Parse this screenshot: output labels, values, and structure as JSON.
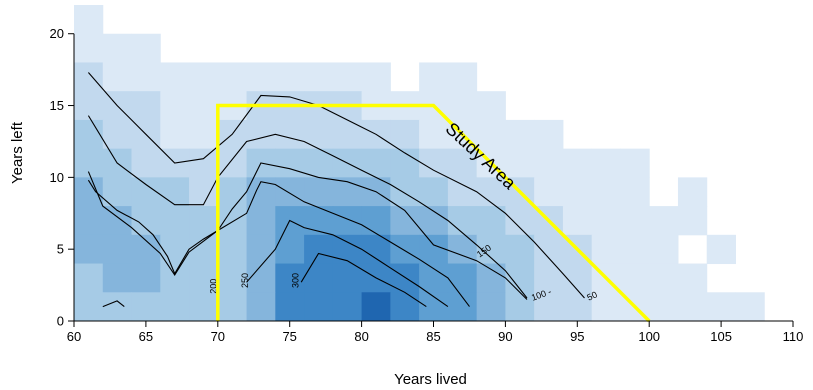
{
  "chart_data": {
    "type": "heatmap",
    "title": "",
    "xlabel": "Years lived",
    "ylabel": "Years left",
    "xlim": [
      60,
      110
    ],
    "ylim": [
      0,
      22
    ],
    "xticks": [
      60,
      65,
      70,
      75,
      80,
      85,
      90,
      95,
      100,
      105,
      110
    ],
    "yticks": [
      0,
      5,
      10,
      15,
      20
    ],
    "grid": false,
    "legend": "none",
    "cell_width": 2,
    "cell_height": 2,
    "color_scale": [
      "#ffffff",
      "#dce9f6",
      "#c2d9ee",
      "#a6cbe6",
      "#85b5dc",
      "#5e9fd2",
      "#3d86c6",
      "#1f66b0"
    ],
    "cells": [
      [
        60,
        20,
        1
      ],
      [
        60,
        18,
        1
      ],
      [
        62,
        18,
        1
      ],
      [
        64,
        18,
        1
      ],
      [
        60,
        16,
        2
      ],
      [
        62,
        16,
        1
      ],
      [
        64,
        16,
        1
      ],
      [
        66,
        16,
        1
      ],
      [
        68,
        16,
        1
      ],
      [
        70,
        16,
        1
      ],
      [
        72,
        16,
        1
      ],
      [
        74,
        16,
        1
      ],
      [
        76,
        16,
        1
      ],
      [
        78,
        16,
        1
      ],
      [
        80,
        16,
        1
      ],
      [
        84,
        16,
        1
      ],
      [
        86,
        16,
        1
      ],
      [
        60,
        14,
        2
      ],
      [
        62,
        14,
        2
      ],
      [
        64,
        14,
        2
      ],
      [
        66,
        14,
        1
      ],
      [
        68,
        14,
        1
      ],
      [
        70,
        14,
        1
      ],
      [
        72,
        14,
        2
      ],
      [
        74,
        14,
        2
      ],
      [
        76,
        14,
        2
      ],
      [
        78,
        14,
        2
      ],
      [
        80,
        14,
        1
      ],
      [
        82,
        14,
        1
      ],
      [
        84,
        14,
        1
      ],
      [
        86,
        14,
        1
      ],
      [
        88,
        14,
        1
      ],
      [
        60,
        12,
        3
      ],
      [
        62,
        12,
        2
      ],
      [
        64,
        12,
        2
      ],
      [
        66,
        12,
        1
      ],
      [
        68,
        12,
        1
      ],
      [
        70,
        12,
        2
      ],
      [
        72,
        12,
        2
      ],
      [
        74,
        12,
        2
      ],
      [
        76,
        12,
        2
      ],
      [
        78,
        12,
        2
      ],
      [
        80,
        12,
        2
      ],
      [
        82,
        12,
        2
      ],
      [
        84,
        12,
        1
      ],
      [
        86,
        12,
        1
      ],
      [
        88,
        12,
        1
      ],
      [
        90,
        12,
        1
      ],
      [
        92,
        12,
        1
      ],
      [
        60,
        10,
        3
      ],
      [
        62,
        10,
        3
      ],
      [
        64,
        10,
        2
      ],
      [
        66,
        10,
        2
      ],
      [
        68,
        10,
        2
      ],
      [
        70,
        10,
        2
      ],
      [
        72,
        10,
        3
      ],
      [
        74,
        10,
        3
      ],
      [
        76,
        10,
        3
      ],
      [
        78,
        10,
        3
      ],
      [
        80,
        10,
        3
      ],
      [
        82,
        10,
        3
      ],
      [
        84,
        10,
        2
      ],
      [
        86,
        10,
        2
      ],
      [
        88,
        10,
        1
      ],
      [
        90,
        10,
        1
      ],
      [
        92,
        10,
        1
      ],
      [
        94,
        10,
        1
      ],
      [
        96,
        10,
        1
      ],
      [
        98,
        10,
        1
      ],
      [
        60,
        8,
        4
      ],
      [
        62,
        8,
        3
      ],
      [
        64,
        8,
        3
      ],
      [
        66,
        8,
        3
      ],
      [
        68,
        8,
        2
      ],
      [
        70,
        8,
        3
      ],
      [
        72,
        8,
        4
      ],
      [
        74,
        8,
        4
      ],
      [
        76,
        8,
        4
      ],
      [
        78,
        8,
        4
      ],
      [
        80,
        8,
        4
      ],
      [
        82,
        8,
        3
      ],
      [
        84,
        8,
        3
      ],
      [
        86,
        8,
        2
      ],
      [
        88,
        8,
        2
      ],
      [
        90,
        8,
        2
      ],
      [
        92,
        8,
        1
      ],
      [
        94,
        8,
        1
      ],
      [
        96,
        8,
        1
      ],
      [
        98,
        8,
        1
      ],
      [
        102,
        8,
        1
      ],
      [
        60,
        6,
        4
      ],
      [
        62,
        6,
        4
      ],
      [
        64,
        6,
        3
      ],
      [
        66,
        6,
        3
      ],
      [
        68,
        6,
        3
      ],
      [
        70,
        6,
        3
      ],
      [
        72,
        6,
        4
      ],
      [
        74,
        6,
        5
      ],
      [
        76,
        6,
        5
      ],
      [
        78,
        6,
        5
      ],
      [
        80,
        6,
        5
      ],
      [
        82,
        6,
        4
      ],
      [
        84,
        6,
        4
      ],
      [
        86,
        6,
        3
      ],
      [
        88,
        6,
        3
      ],
      [
        90,
        6,
        2
      ],
      [
        92,
        6,
        2
      ],
      [
        94,
        6,
        1
      ],
      [
        96,
        6,
        1
      ],
      [
        98,
        6,
        1
      ],
      [
        100,
        6,
        1
      ],
      [
        102,
        6,
        1
      ],
      [
        60,
        4,
        4
      ],
      [
        62,
        4,
        4
      ],
      [
        64,
        4,
        4
      ],
      [
        66,
        4,
        3
      ],
      [
        68,
        4,
        3
      ],
      [
        70,
        4,
        3
      ],
      [
        72,
        4,
        4
      ],
      [
        74,
        4,
        5
      ],
      [
        76,
        4,
        6
      ],
      [
        78,
        4,
        6
      ],
      [
        80,
        4,
        6
      ],
      [
        82,
        4,
        5
      ],
      [
        84,
        4,
        5
      ],
      [
        86,
        4,
        4
      ],
      [
        88,
        4,
        3
      ],
      [
        90,
        4,
        3
      ],
      [
        92,
        4,
        2
      ],
      [
        94,
        4,
        2
      ],
      [
        96,
        4,
        1
      ],
      [
        98,
        4,
        1
      ],
      [
        100,
        4,
        1
      ],
      [
        104,
        4,
        1
      ],
      [
        60,
        2,
        3
      ],
      [
        62,
        2,
        4
      ],
      [
        64,
        2,
        4
      ],
      [
        66,
        2,
        3
      ],
      [
        68,
        2,
        3
      ],
      [
        70,
        2,
        3
      ],
      [
        72,
        2,
        4
      ],
      [
        74,
        2,
        6
      ],
      [
        76,
        2,
        6
      ],
      [
        78,
        2,
        6
      ],
      [
        80,
        2,
        6
      ],
      [
        82,
        2,
        6
      ],
      [
        84,
        2,
        5
      ],
      [
        86,
        2,
        5
      ],
      [
        88,
        2,
        4
      ],
      [
        90,
        2,
        3
      ],
      [
        92,
        2,
        2
      ],
      [
        94,
        2,
        2
      ],
      [
        96,
        2,
        1
      ],
      [
        98,
        2,
        1
      ],
      [
        100,
        2,
        1
      ],
      [
        102,
        2,
        1
      ],
      [
        60,
        0,
        3
      ],
      [
        62,
        0,
        3
      ],
      [
        64,
        0,
        3
      ],
      [
        66,
        0,
        3
      ],
      [
        68,
        0,
        3
      ],
      [
        70,
        0,
        3
      ],
      [
        72,
        0,
        4
      ],
      [
        74,
        0,
        6
      ],
      [
        76,
        0,
        6
      ],
      [
        78,
        0,
        6
      ],
      [
        80,
        0,
        7
      ],
      [
        82,
        0,
        6
      ],
      [
        84,
        0,
        5
      ],
      [
        86,
        0,
        5
      ],
      [
        88,
        0,
        4
      ],
      [
        90,
        0,
        3
      ],
      [
        92,
        0,
        2
      ],
      [
        94,
        0,
        2
      ],
      [
        96,
        0,
        1
      ],
      [
        98,
        0,
        1
      ],
      [
        100,
        0,
        1
      ],
      [
        102,
        0,
        1
      ],
      [
        104,
        0,
        1
      ],
      [
        106,
        0,
        1
      ]
    ],
    "contours": [
      {
        "label": "50",
        "points": [
          [
            61,
            17.3
          ],
          [
            63,
            15
          ],
          [
            65,
            13
          ],
          [
            67,
            11
          ],
          [
            69,
            11.3
          ],
          [
            71,
            13
          ],
          [
            73,
            15.7
          ],
          [
            75,
            15.6
          ],
          [
            77,
            15
          ],
          [
            79,
            14
          ],
          [
            81,
            13
          ],
          [
            83,
            11.7
          ],
          [
            85,
            10.5
          ],
          [
            88,
            9
          ],
          [
            90,
            7.5
          ],
          [
            92,
            5.5
          ],
          [
            94,
            3.3
          ],
          [
            95.5,
            1.6
          ]
        ]
      },
      {
        "label": "100",
        "points": [
          [
            61,
            14.3
          ],
          [
            63,
            11
          ],
          [
            65,
            9.5
          ],
          [
            67,
            8.1
          ],
          [
            69,
            8.1
          ],
          [
            70,
            10
          ],
          [
            72,
            12.5
          ],
          [
            74,
            13
          ],
          [
            76,
            12.5
          ],
          [
            78,
            11.5
          ],
          [
            80,
            10.5
          ],
          [
            82,
            9.5
          ],
          [
            84,
            8.3
          ],
          [
            86,
            7
          ],
          [
            88,
            5.3
          ],
          [
            90,
            3.5
          ],
          [
            91.5,
            1.6
          ]
        ]
      },
      {
        "label": "150",
        "points": [
          [
            61,
            10.4
          ],
          [
            62,
            8
          ],
          [
            64,
            6.5
          ],
          [
            66,
            4.7
          ],
          [
            67,
            3.2
          ],
          [
            68,
            4.8
          ],
          [
            70,
            6.3
          ],
          [
            71,
            7.8
          ],
          [
            72,
            9
          ],
          [
            73,
            11
          ],
          [
            75,
            10.6
          ],
          [
            77,
            10
          ],
          [
            79,
            9.7
          ],
          [
            81,
            9
          ],
          [
            83,
            7.7
          ],
          [
            85,
            5.3
          ],
          [
            88,
            4.2
          ],
          [
            90,
            3
          ],
          [
            91.5,
            1.5
          ]
        ]
      },
      {
        "label": "200",
        "points": [
          [
            61,
            9.8
          ],
          [
            61.5,
            9
          ],
          [
            63,
            7.7
          ],
          [
            64.5,
            6.9
          ],
          [
            65.5,
            6
          ],
          [
            66.5,
            4.5
          ],
          [
            67,
            3.3
          ],
          [
            68,
            5
          ],
          [
            69,
            5.7
          ],
          [
            70,
            6.3
          ],
          [
            72,
            7.5
          ],
          [
            72.7,
            9.1
          ],
          [
            73,
            9.7
          ],
          [
            74,
            9.5
          ],
          [
            76,
            8.3
          ],
          [
            78,
            7.5
          ],
          [
            80,
            6.7
          ],
          [
            82,
            5.5
          ],
          [
            84,
            4.3
          ],
          [
            86,
            3
          ],
          [
            87.5,
            1
          ]
        ]
      },
      {
        "label": "250",
        "points": [
          [
            72,
            2.7
          ],
          [
            74,
            5
          ],
          [
            75,
            7
          ],
          [
            76,
            6.5
          ],
          [
            78,
            6
          ],
          [
            80,
            5
          ],
          [
            82,
            3.7
          ],
          [
            84,
            2.4
          ],
          [
            86,
            1
          ]
        ]
      },
      {
        "label": "300",
        "points": [
          [
            75.8,
            2.7
          ],
          [
            77,
            4.7
          ],
          [
            79,
            4.2
          ],
          [
            81,
            3
          ],
          [
            83,
            2
          ],
          [
            84.5,
            1
          ]
        ]
      },
      {
        "label": "",
        "points": [
          [
            62,
            1
          ],
          [
            63,
            1.4
          ],
          [
            63.5,
            1
          ]
        ]
      }
    ],
    "contour_labels": [
      {
        "text": "50",
        "x": 95.8,
        "y": 1.4,
        "angle": -25
      },
      {
        "text": "100 -",
        "x": 91.9,
        "y": 1.4,
        "angle": -20
      },
      {
        "text": "150",
        "x": 88.2,
        "y": 4.4,
        "angle": -35
      },
      {
        "text": "200",
        "x": 69.9,
        "y": 1.9,
        "angle": -90
      },
      {
        "text": "250",
        "x": 72.1,
        "y": 2.3,
        "angle": -90
      },
      {
        "text": "300",
        "x": 75.6,
        "y": 2.3,
        "angle": -90
      }
    ],
    "annotations": [
      {
        "text": "Study Area",
        "x": 88,
        "y": 11.2,
        "angle": 43
      }
    ],
    "study_area": [
      [
        70,
        0
      ],
      [
        70,
        15
      ],
      [
        85,
        15
      ],
      [
        100,
        0
      ]
    ]
  }
}
